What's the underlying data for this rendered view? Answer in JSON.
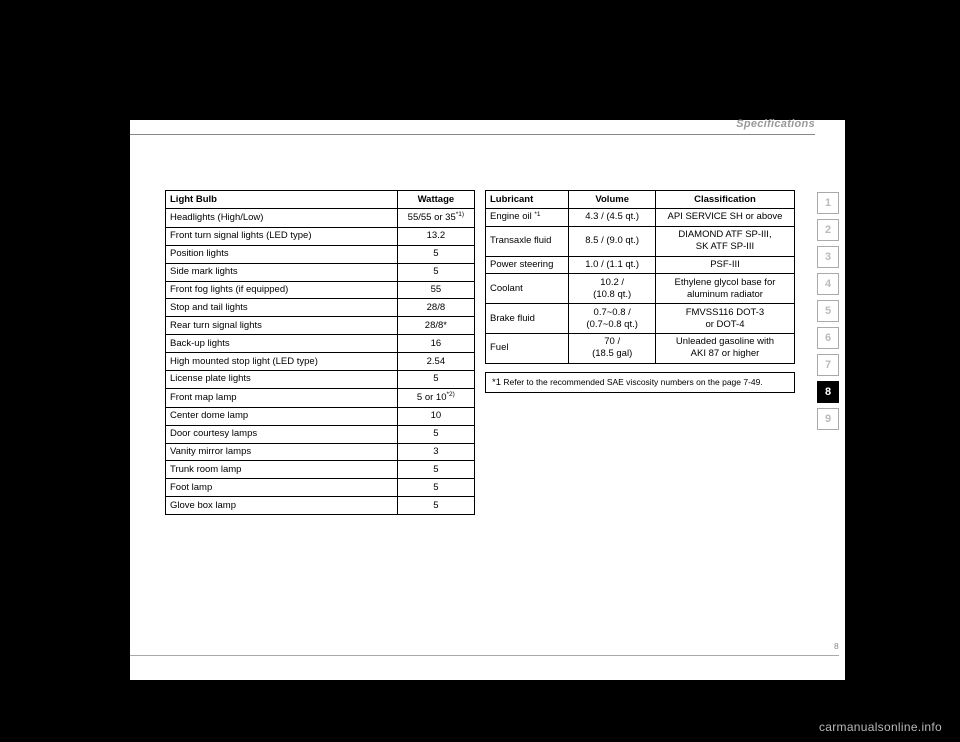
{
  "header": {
    "section_title": "Specifications"
  },
  "bulb_table": {
    "headers": [
      "Light Bulb",
      "Wattage"
    ],
    "rows": [
      {
        "label": "Headlights (High/Low)",
        "wattage_pre": "55/55 or 35",
        "wattage_sup": "*1)"
      },
      {
        "label": "Front turn signal lights (LED type)",
        "wattage": "13.2"
      },
      {
        "label": "Position lights",
        "wattage": "5"
      },
      {
        "label": "Side mark lights",
        "wattage": "5"
      },
      {
        "label": "Front fog lights (if equipped)",
        "wattage": "55"
      },
      {
        "label": "Stop and tail lights",
        "wattage": "28/8"
      },
      {
        "label": "Rear turn signal lights",
        "wattage": "28/8*"
      },
      {
        "label": "Back-up lights",
        "wattage": "16"
      },
      {
        "label": "High mounted stop light (LED type)",
        "wattage": "2.54"
      },
      {
        "label": "License plate lights",
        "wattage": "5"
      },
      {
        "label": "Front map lamp",
        "wattage_pre": "5 or 10",
        "wattage_sup": "*2)"
      },
      {
        "label": "Center dome lamp",
        "wattage": "10"
      },
      {
        "label": "Door courtesy lamps",
        "wattage": "5"
      },
      {
        "label": "Vanity mirror lamps",
        "wattage": "3"
      },
      {
        "label": "Trunk room lamp",
        "wattage": "5"
      },
      {
        "label": "Foot lamp",
        "wattage": "5"
      },
      {
        "label": "Glove box lamp",
        "wattage": "5"
      }
    ]
  },
  "lubricant_table": {
    "headers": [
      "Lubricant",
      "Volume",
      "Classification"
    ],
    "rows": [
      {
        "name": "Engine oil",
        "name_sup": "*1",
        "volume": "4.3 / (4.5 qt.)",
        "class": "API SERVICE SH or above"
      },
      {
        "name": "Transaxle fluid",
        "volume": "8.5 / (9.0 qt.)",
        "class_line1": "DIAMOND ATF SP-III,",
        "class_line2": "SK ATF SP-III"
      },
      {
        "name": "Power steering",
        "volume": "1.0 / (1.1 qt.)",
        "class": "PSF-III"
      },
      {
        "name": "Coolant",
        "volume_line1": "10.2 /",
        "volume_line2": "(10.8 qt.)",
        "class_line1": "Ethylene glycol base for",
        "class_line2": "aluminum radiator"
      },
      {
        "name": "Brake fluid",
        "volume_line1": "0.7~0.8 /",
        "volume_line2": "(0.7~0.8 qt.)",
        "class_line1": "FMVSS116 DOT-3",
        "class_line2": "or DOT-4"
      },
      {
        "name": "Fuel",
        "volume_line1": "70 /",
        "volume_line2": "(18.5 gal)",
        "class_line1": "Unleaded gasoline with",
        "class_line2": "AKI 87 or higher"
      }
    ],
    "footnote_star": "*1",
    "footnote_text": " Refer to the recommended SAE viscosity numbers on the page 7-49."
  },
  "tabs": {
    "items": [
      "1",
      "2",
      "3",
      "4",
      "5",
      "6",
      "7",
      "8",
      "9"
    ],
    "active": "8"
  },
  "page_number": "8",
  "watermark": "carmanualsonline.info"
}
